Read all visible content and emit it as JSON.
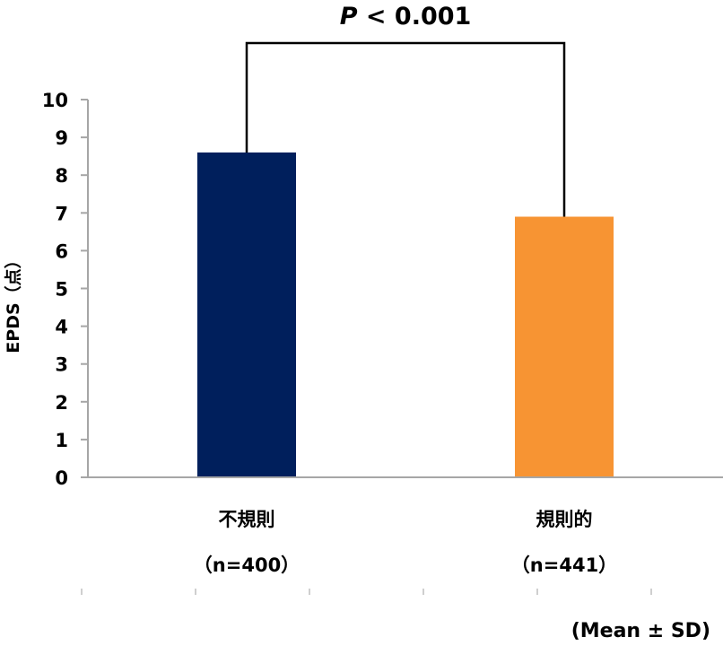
{
  "chart_data": {
    "type": "bar",
    "categories": [
      "不規則",
      "規則的"
    ],
    "category_n": [
      "（n=400）",
      "（n=441）"
    ],
    "values": [
      8.6,
      6.9
    ],
    "bar_colors": [
      "#001f5c",
      "#f79433"
    ],
    "ylabel": "EPDS（点）",
    "ylim": [
      0,
      10
    ],
    "yticks": [
      0,
      1,
      2,
      3,
      4,
      5,
      6,
      7,
      8,
      9,
      10
    ],
    "grid": false,
    "significance": {
      "p_symbol": "P",
      "text": "< 0.001"
    },
    "footnote": "(Mean ± SD)"
  }
}
